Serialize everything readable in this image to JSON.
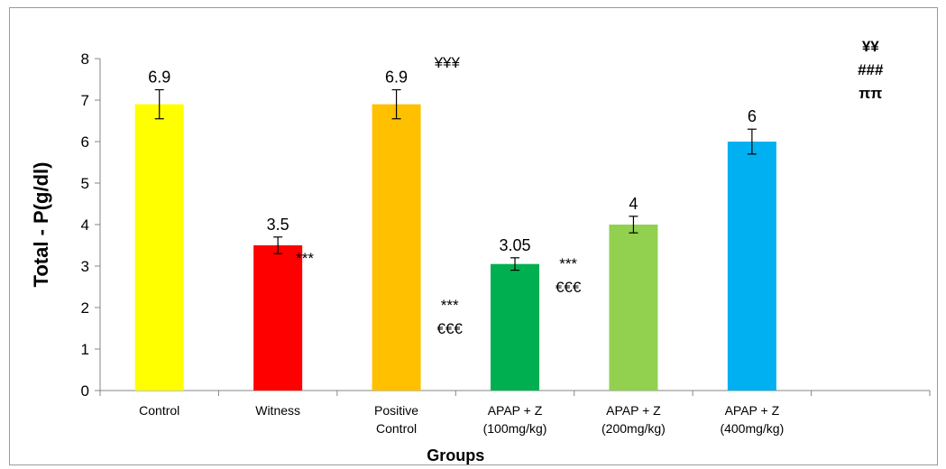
{
  "chart_data": {
    "type": "bar",
    "ylabel": "Total - P(g/dl)",
    "xlabel": "Groups",
    "ylim": [
      0,
      8
    ],
    "yticks": [
      "0",
      "1",
      "2",
      "3",
      "4",
      "5",
      "6",
      "7",
      "8"
    ],
    "categories": [
      [
        "Control"
      ],
      [
        "Witness"
      ],
      [
        "Positive",
        "Control"
      ],
      [
        "APAP + Z",
        "(100mg/kg)"
      ],
      [
        "APAP + Z",
        "(200mg/kg)"
      ],
      [
        "APAP + Z",
        "(400mg/kg)"
      ]
    ],
    "values": [
      6.9,
      3.5,
      6.9,
      3.05,
      4.0,
      6.0
    ],
    "errors": [
      0.35,
      0.2,
      0.35,
      0.15,
      0.2,
      0.3
    ],
    "value_labels": [
      "6.9",
      "3.5",
      "6.9",
      "3.05",
      "4",
      "6"
    ],
    "colors": [
      "#ffff00",
      "#ff0000",
      "#ffc000",
      "#00b050",
      "#92d050",
      "#00b0f0"
    ],
    "grid": false,
    "legend": "none",
    "annotations": [
      {
        "bar": 1,
        "lines": [
          "***"
        ]
      },
      {
        "bar": 2,
        "lines": [
          "¥¥¥"
        ]
      },
      {
        "bar": 3,
        "lines": [
          "***",
          "€€€"
        ]
      },
      {
        "bar": 4,
        "lines": [
          "***",
          "€€€"
        ]
      },
      {
        "bar": 5,
        "lines": [
          "¥¥",
          "###",
          "ππ"
        ]
      }
    ]
  }
}
